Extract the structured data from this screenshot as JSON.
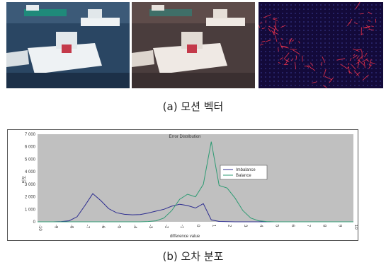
{
  "captions": {
    "a": "(a) 모션 벡터",
    "b": "(b) 오차 분포"
  },
  "colors": {
    "water_dark": "#223a55",
    "boat_white": "#e9eef2",
    "motion_bg": "#130a3a",
    "motion_vec": "#e8304a",
    "plot_bg": "#c0c0c0",
    "imbalance": "#2b2b8f",
    "balance": "#2e9b73"
  },
  "chart_data": {
    "type": "line",
    "title": "Error Distribution",
    "xlabel": "difference value",
    "ylabel": "빈도",
    "ylim": [
      0,
      7000
    ],
    "yticks": [
      0,
      1000,
      2000,
      3000,
      4000,
      5000,
      6000,
      7000
    ],
    "ytick_labels": [
      "0",
      "1 000",
      "2 000",
      "3 000",
      "4 000",
      "5 000",
      "6 000",
      "7 000"
    ],
    "xlim": [
      -10,
      10
    ],
    "x": [
      -10,
      -9.5,
      -9,
      -8.5,
      -8,
      -7.5,
      -7,
      -6.5,
      -6,
      -5.5,
      -5,
      -4.5,
      -4,
      -3.5,
      -3,
      -2.5,
      -2,
      -1.5,
      -1,
      -0.5,
      0,
      0.5,
      1,
      1.5,
      2,
      2.5,
      3,
      3.5,
      4,
      4.5,
      5,
      5.5,
      6,
      6.5,
      7,
      7.5,
      8,
      8.5,
      9,
      9.5,
      10
    ],
    "series": [
      {
        "name": "Imbalance",
        "values": [
          0,
          0,
          0,
          20,
          80,
          400,
          1300,
          2250,
          1700,
          1050,
          720,
          600,
          560,
          580,
          700,
          850,
          1000,
          1250,
          1400,
          1300,
          1100,
          1450,
          150,
          30,
          10,
          0,
          0,
          0,
          0,
          0,
          0,
          0,
          0,
          0,
          0,
          0,
          0,
          0,
          0,
          0,
          0
        ]
      },
      {
        "name": "Balance",
        "values": [
          0,
          0,
          0,
          0,
          0,
          0,
          0,
          0,
          0,
          0,
          0,
          0,
          0,
          0,
          20,
          80,
          300,
          900,
          1800,
          2200,
          2000,
          3000,
          6400,
          2900,
          2700,
          1900,
          900,
          300,
          80,
          20,
          0,
          0,
          0,
          0,
          0,
          0,
          0,
          0,
          0,
          0,
          0
        ]
      }
    ],
    "legend_position": "right"
  }
}
